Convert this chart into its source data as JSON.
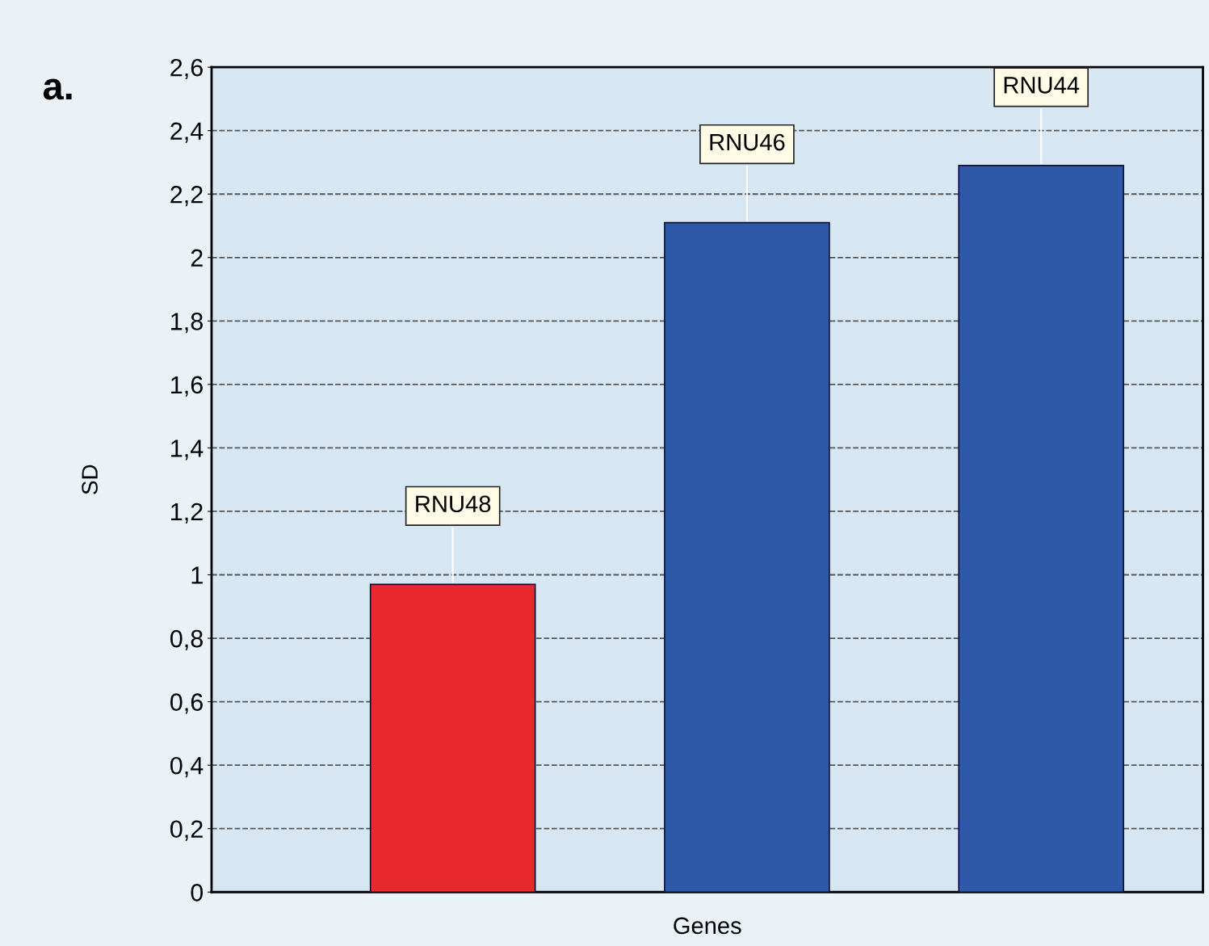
{
  "chart_data": {
    "type": "bar",
    "title": "a.",
    "xlabel": "Genes",
    "ylabel": "SD",
    "categories": [
      "RNU48",
      "RNU46",
      "RNU44"
    ],
    "values": [
      0.97,
      2.11,
      2.29
    ],
    "colors": [
      "#e8292e",
      "#2e58a8",
      "#2e58a8"
    ],
    "ylim": [
      0,
      2.6
    ],
    "yticks": [
      0,
      {
        "value": 0.2,
        "label": "0,2"
      },
      {
        "value": 0.4,
        "label": "0,4"
      },
      {
        "value": 0.6,
        "label": "0,6"
      },
      {
        "value": 0.8,
        "label": "0,8"
      },
      1,
      {
        "value": 1.2,
        "label": "1,2"
      },
      {
        "value": 1.4,
        "label": "1,4"
      },
      {
        "value": 1.6,
        "label": "1,6"
      },
      {
        "value": 1.8,
        "label": "1,8"
      },
      2,
      {
        "value": 2.2,
        "label": "2,2"
      },
      {
        "value": 2.4,
        "label": "2,4"
      },
      {
        "value": 2.6,
        "label": "2,6"
      }
    ],
    "grid": "y",
    "tick_labels": "y",
    "line_style": "dashed"
  }
}
